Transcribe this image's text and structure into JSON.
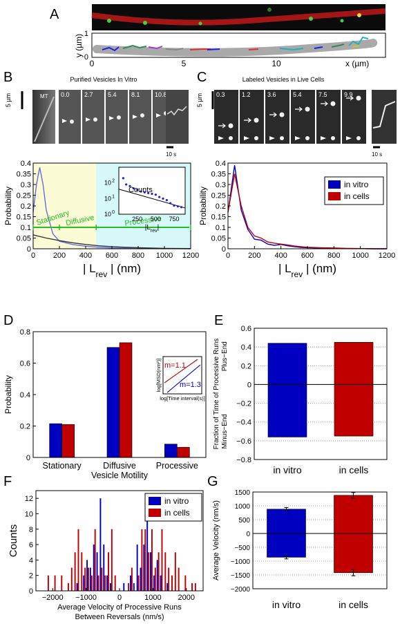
{
  "panel_letters": {
    "A": "A",
    "B": "B",
    "C": "C",
    "D": "D",
    "E": "E",
    "F": "F",
    "G": "G"
  },
  "panel_A": {
    "ylabel": "y (µm)",
    "xlabel": "x (µm)",
    "xticks": [
      "0",
      "5",
      "10"
    ],
    "yticks": [
      "0",
      "1"
    ]
  },
  "panel_B": {
    "title": "Purified Vesicles In Vitro",
    "scalebar": "5 µm",
    "time_scalebar": "10 s",
    "mt_label": "MT",
    "frame_times": [
      "0.0",
      "2.7",
      "5.4",
      "8.1",
      "10.8"
    ]
  },
  "panel_C": {
    "title": "Labeled Vesicles in Live Cells",
    "scalebar": "5 µm",
    "time_scalebar": "10 s",
    "frame_times": [
      "0.3",
      "1.2",
      "3.6",
      "5.4",
      "7.5",
      "9.9"
    ]
  },
  "chart_data": [
    {
      "id": "B_hist",
      "type": "line",
      "xlabel": "| L",
      "xlabel_sub": "rev",
      "xlabel_tail": " | (nm)",
      "ylabel": "Probability",
      "xlim": [
        0,
        1200
      ],
      "ylim": [
        0,
        0.4
      ],
      "xticks": [
        "0",
        "200",
        "400",
        "600",
        "800",
        "1000",
        "1200"
      ],
      "yticks": [
        "0",
        "0.05",
        "0.1",
        "0.15",
        "0.2",
        "0.25",
        "0.3",
        "0.35",
        "0.4"
      ],
      "regions": [
        {
          "from": 0,
          "to": 480,
          "color": "#fbfbd6"
        },
        {
          "from": 480,
          "to": 1200,
          "color": "#d6f8f8"
        }
      ],
      "region_labels": [
        "Stationary",
        "Diffusive",
        "Processive"
      ],
      "region_label_color": "#22c022",
      "series": [
        {
          "color": "#6a6ae0",
          "x": [
            0,
            25,
            50,
            75,
            100,
            150,
            200,
            300,
            400,
            500,
            600,
            800,
            1000,
            1200
          ],
          "y": [
            0.17,
            0.3,
            0.38,
            0.3,
            0.18,
            0.07,
            0.035,
            0.02,
            0.012,
            0.007,
            0.004,
            0.002,
            0.001,
            0
          ]
        },
        {
          "color": "#333333",
          "x": [
            0,
            100,
            200,
            300,
            400,
            500,
            600,
            700,
            800,
            1000,
            1200
          ],
          "y": [
            0.065,
            0.05,
            0.038,
            0.028,
            0.02,
            0.014,
            0.01,
            0.007,
            0.005,
            0.002,
            0.001
          ]
        }
      ],
      "inset": {
        "xlabel": "|L",
        "xlabel_sub": "rev",
        "xlabel_tail": "|",
        "ylabel": "Counts",
        "xticks": [
          "250",
          "500",
          "750"
        ],
        "yticks": [
          "10",
          "10",
          "10"
        ],
        "ytick_exp": [
          "0",
          "1",
          "2"
        ],
        "xlim": [
          0,
          900
        ],
        "ylim_log": [
          0,
          3
        ],
        "points": [
          [
            60,
            2.3
          ],
          [
            100,
            1.9
          ],
          [
            150,
            1.8
          ],
          [
            200,
            1.65
          ],
          [
            250,
            1.55
          ],
          [
            300,
            1.45
          ],
          [
            350,
            1.4
          ],
          [
            400,
            1.35
          ],
          [
            450,
            1.3
          ],
          [
            500,
            1.25
          ],
          [
            550,
            1.1
          ],
          [
            600,
            1.0
          ],
          [
            650,
            0.9
          ],
          [
            700,
            0.7
          ],
          [
            750,
            0.55
          ],
          [
            800,
            0.5
          ],
          [
            850,
            0.45
          ]
        ],
        "fit": [
          [
            0,
            1.6
          ],
          [
            900,
            0.4
          ]
        ]
      }
    },
    {
      "id": "C_hist",
      "type": "line",
      "xlabel": "| L",
      "xlabel_sub": "rev",
      "xlabel_tail": " | (nm)",
      "ylabel": "Probability",
      "xlim": [
        0,
        1200
      ],
      "ylim": [
        0,
        0.4
      ],
      "xticks": [
        "0",
        "200",
        "400",
        "600",
        "800",
        "1000",
        "1200"
      ],
      "yticks": [
        "0",
        "0.05",
        "0.1",
        "0.15",
        "0.2",
        "0.25",
        "0.3",
        "0.35",
        "0.4"
      ],
      "legend_position": "top-right",
      "series": [
        {
          "name": "in vitro",
          "color": "#0000c0",
          "x": [
            0,
            50,
            100,
            150,
            200,
            250,
            300,
            350,
            400,
            450,
            500,
            550,
            600,
            700,
            800,
            900,
            1000,
            1100,
            1200
          ],
          "y": [
            0.17,
            0.39,
            0.18,
            0.09,
            0.045,
            0.04,
            0.022,
            0.016,
            0.02,
            0.014,
            0.01,
            0.006,
            0.005,
            0.003,
            0.003,
            0.001,
            0.001,
            0,
            0
          ]
        },
        {
          "name": "in cells",
          "color": "#c00000",
          "x": [
            0,
            50,
            100,
            150,
            200,
            250,
            300,
            350,
            400,
            450,
            500,
            550,
            600,
            700,
            800,
            900,
            1000,
            1100,
            1200
          ],
          "y": [
            0.17,
            0.35,
            0.2,
            0.1,
            0.06,
            0.05,
            0.032,
            0.026,
            0.022,
            0.018,
            0.013,
            0.01,
            0.007,
            0.005,
            0.004,
            0.002,
            0.001,
            0,
            0
          ]
        }
      ]
    },
    {
      "id": "D_bar",
      "type": "bar",
      "xlabel": "Vesicle Motility",
      "ylabel": "Probability",
      "categories": [
        "Stationary",
        "Diffusive",
        "Processive"
      ],
      "ylim": [
        0,
        0.8
      ],
      "yticks": [
        "0",
        "0.2",
        "0.4",
        "0.6",
        "0.8"
      ],
      "series": [
        {
          "color": "#0000c0",
          "values": [
            0.215,
            0.7,
            0.085
          ]
        },
        {
          "color": "#c00000",
          "values": [
            0.21,
            0.73,
            0.065
          ]
        }
      ],
      "inset": {
        "ylabel": "log[MSD(nm²)]",
        "xlabel": "log[Time interval(s)]",
        "annotations": [
          {
            "text": "m=1.1",
            "color": "#c00000"
          },
          {
            "text": "m=1.3",
            "color": "#0000c0"
          }
        ]
      }
    },
    {
      "id": "E_bar",
      "type": "bar",
      "ylabel": "Fraction of Time of Processive Runs",
      "ylabel_top": "Plus−End",
      "ylabel_bottom": "Minus−End",
      "categories": [
        "in vitro",
        "in cells"
      ],
      "ylim": [
        -0.8,
        0.6
      ],
      "yticks": [
        "−0.8",
        "−0.6",
        "−0.4",
        "−0.2",
        "0",
        "0.2",
        "0.4",
        "0.6"
      ],
      "series": [
        {
          "colors": [
            "#0000c0",
            "#c00000"
          ],
          "values": [
            0.44,
            0.45
          ]
        },
        {
          "colors": [
            "#0000c0",
            "#c00000"
          ],
          "values": [
            -0.56,
            -0.55
          ]
        }
      ]
    },
    {
      "id": "F_hist",
      "type": "bar",
      "xlabel": "Average Velocity of Processive Runs",
      "xlabel2": "Between Reversals (nm/s)",
      "ylabel": "Counts",
      "xlim": [
        -2500,
        2500
      ],
      "ylim": [
        0,
        13
      ],
      "xticks": [
        "−2000",
        "−1000",
        "0",
        "1000",
        "2000"
      ],
      "yticks": [
        "0",
        "2",
        "4",
        "6",
        "8",
        "10",
        "12"
      ],
      "bin_width": 80,
      "legend_position": "top-right",
      "series": [
        {
          "name": "in vitro",
          "color": "#0000c0",
          "x": [
            -1250,
            -1050,
            -950,
            -850,
            -750,
            -650,
            -550,
            -450,
            -350,
            -250,
            150,
            350,
            450,
            550,
            650,
            750,
            850,
            950,
            1050,
            1150,
            1250,
            1450
          ],
          "values": [
            1,
            2,
            4,
            3,
            6,
            5,
            12,
            6,
            2,
            1,
            1,
            2,
            1,
            6,
            3,
            6,
            10,
            5,
            2,
            4,
            2,
            1
          ]
        },
        {
          "name": "in cells",
          "color": "#c00000",
          "x": [
            -2150,
            -1950,
            -1750,
            -1550,
            -1450,
            -1350,
            -1250,
            -1150,
            -1050,
            -950,
            -850,
            -750,
            -650,
            -550,
            -450,
            -350,
            -250,
            -150,
            250,
            350,
            550,
            650,
            750,
            850,
            950,
            1050,
            1150,
            1250,
            1350,
            1450,
            1550,
            1650,
            1750,
            1950,
            2150,
            2250
          ],
          "values": [
            2,
            2,
            2,
            1,
            3,
            5,
            8,
            5,
            3,
            3,
            2,
            8,
            2,
            3,
            2,
            5,
            8,
            2,
            1,
            3,
            2,
            8,
            8,
            5,
            8,
            3,
            5,
            8,
            5,
            3,
            2,
            5,
            3,
            2,
            1,
            1
          ]
        }
      ]
    },
    {
      "id": "G_bar",
      "type": "bar",
      "ylabel": "Average Velocity (nm/s)",
      "categories": [
        "in vitro",
        "in cells"
      ],
      "ylim": [
        -2000,
        1500
      ],
      "yticks": [
        "−2000",
        "−1500",
        "−1000",
        "−500",
        "0",
        "500",
        "1000",
        "1500"
      ],
      "series": [
        {
          "colors": [
            "#0000c0",
            "#c00000"
          ],
          "values": [
            880,
            1380
          ],
          "errors": [
            60,
            100
          ]
        },
        {
          "colors": [
            "#0000c0",
            "#c00000"
          ],
          "values": [
            -860,
            -1420
          ],
          "errors": [
            60,
            110
          ]
        }
      ]
    }
  ]
}
